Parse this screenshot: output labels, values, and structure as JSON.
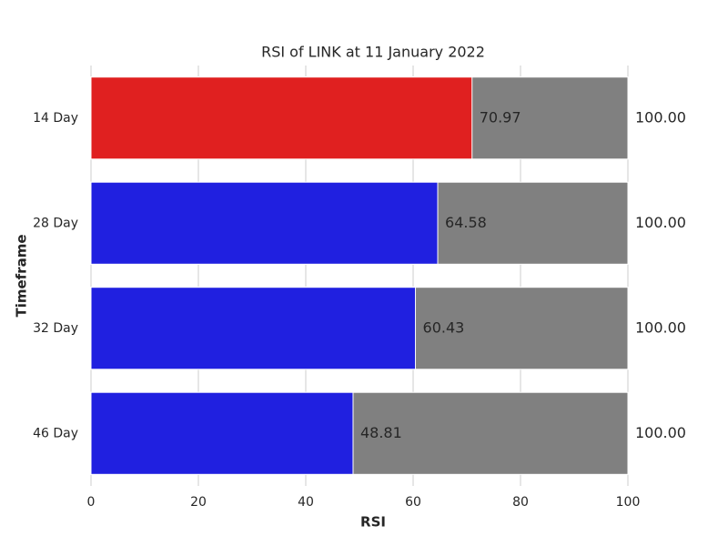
{
  "chart_data": {
    "type": "bar",
    "orientation": "horizontal",
    "title": "RSI of LINK at 11 January 2022",
    "x_label": "RSI",
    "y_label": "Timeframe",
    "categories": [
      "14 Day",
      "28 Day",
      "32 Day",
      "46 Day"
    ],
    "series": [
      {
        "color": "#808080",
        "values": [
          100,
          100,
          100,
          100
        ],
        "value_labels": [
          "100.00",
          "100.00",
          "100.00",
          "100.00"
        ]
      },
      {
        "colors": [
          "#e02020",
          "#2020e0",
          "#2020e0",
          "#2020e0"
        ],
        "values": [
          70.97,
          64.58,
          60.43,
          48.81
        ],
        "value_labels": [
          "70.97",
          "64.58",
          "60.43",
          "48.81"
        ]
      }
    ],
    "xlim": [
      0,
      100
    ],
    "xticks": [
      0,
      20,
      40,
      60,
      80,
      100
    ],
    "grid": true
  }
}
